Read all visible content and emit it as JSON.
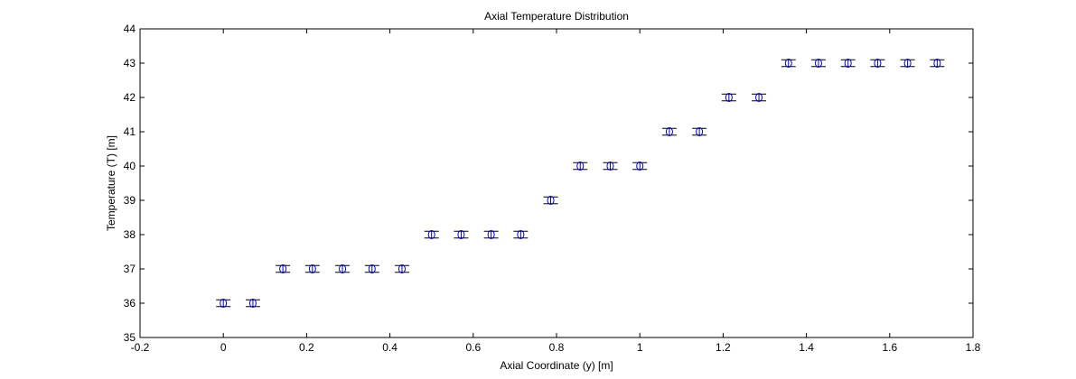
{
  "chart_data": {
    "type": "scatter",
    "title": "Axial Temperature Distribution",
    "xlabel": "Axial Coordinate (y) [m]",
    "ylabel": "Temperature (T) [m]",
    "xlim": [
      -0.2,
      1.8
    ],
    "ylim": [
      35,
      44
    ],
    "xticks": [
      -0.2,
      0,
      0.2,
      0.4,
      0.6,
      0.8,
      1,
      1.2,
      1.4,
      1.6,
      1.8
    ],
    "xtick_labels": [
      "-0.2",
      "0",
      "0.2",
      "0.4",
      "0.6",
      "0.8",
      "1",
      "1.2",
      "1.4",
      "1.6",
      "1.8"
    ],
    "yticks": [
      35,
      36,
      37,
      38,
      39,
      40,
      41,
      42,
      43,
      44
    ],
    "ytick_labels": [
      "35",
      "36",
      "37",
      "38",
      "39",
      "40",
      "41",
      "42",
      "43",
      "44"
    ],
    "grid": false,
    "marker": "circle",
    "error_bars": true,
    "error": 0.1,
    "color": "#0000cc",
    "x": [
      0,
      0.071,
      0.143,
      0.214,
      0.286,
      0.357,
      0.429,
      0.5,
      0.571,
      0.643,
      0.714,
      0.786,
      0.857,
      0.929,
      1.0,
      1.071,
      1.143,
      1.214,
      1.286,
      1.357,
      1.429,
      1.5,
      1.571,
      1.643,
      1.714
    ],
    "y": [
      36,
      36,
      37,
      37,
      37,
      37,
      37,
      38,
      38,
      38,
      38,
      39,
      40,
      40,
      40,
      41,
      41,
      42,
      42,
      43,
      43,
      43,
      43,
      43,
      43
    ]
  }
}
